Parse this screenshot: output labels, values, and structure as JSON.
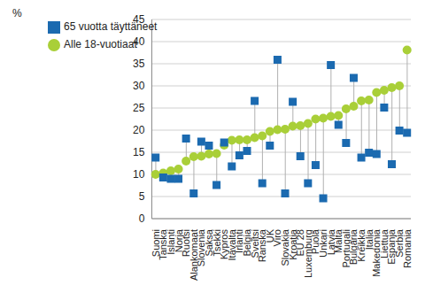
{
  "chart_data": {
    "type": "dot",
    "y_label": "%",
    "categories": [
      "Suomi",
      "Tanska",
      "Islanti",
      "Norja",
      "Ruotsi",
      "Alankomaat",
      "Slovenia",
      "Saksa",
      "Tsekki",
      "Kypros",
      "Itävalta",
      "Irlanti",
      "Belgia",
      "Sveitsi",
      "Ranska",
      "UK",
      "Viro",
      "Slovakia",
      "Kroatia",
      "EU 28",
      "Luxemburg",
      "Puola",
      "Unkari",
      "Latvia",
      "Malta",
      "Portugali",
      "Bulgaria",
      "Kreikka",
      "Italia",
      "Makedonia",
      "Liettua",
      "Espanja",
      "Serbia",
      "Romania"
    ],
    "series": [
      {
        "name": "Alle 18-vuotiaat",
        "color": "#a9cf38",
        "marker": "circle",
        "values": [
          10.0,
          10.3,
          10.8,
          11.2,
          13.0,
          14.0,
          14.1,
          14.6,
          14.7,
          16.6,
          17.7,
          17.8,
          17.8,
          18.3,
          18.7,
          19.7,
          20.1,
          20.2,
          20.9,
          21.0,
          21.5,
          22.5,
          22.7,
          23.1,
          23.3,
          24.8,
          25.4,
          26.6,
          26.8,
          28.5,
          29.0,
          29.6,
          30.0,
          38.1
        ]
      },
      {
        "name": "65 vuotta täyttäneet",
        "color": "#1b6ab0",
        "marker": "square",
        "values": [
          13.8,
          9.3,
          9.0,
          9.0,
          18.1,
          5.7,
          17.4,
          16.5,
          7.6,
          17.2,
          11.8,
          14.3,
          15.3,
          26.6,
          8.0,
          16.5,
          35.9,
          5.7,
          26.4,
          14.1,
          8.0,
          12.1,
          4.6,
          34.7,
          21.2,
          17.1,
          31.8,
          13.8,
          14.9,
          14.6,
          25.1,
          12.3,
          19.9,
          19.4
        ]
      }
    ],
    "ylim": [
      0,
      45
    ],
    "yticks": [
      0,
      5,
      10,
      15,
      20,
      25,
      30,
      35,
      40,
      45
    ],
    "grid": true,
    "legend": "top-left"
  }
}
